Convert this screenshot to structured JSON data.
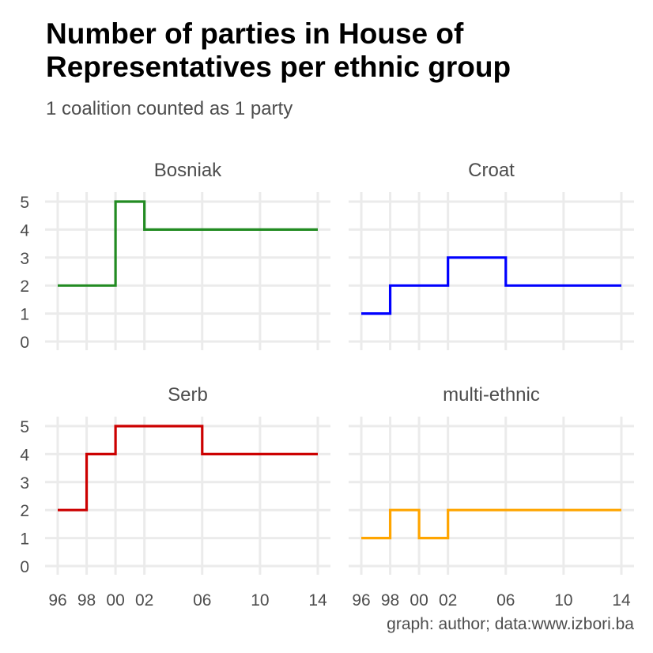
{
  "title": "Number of parties in House of Representatives per ethnic group",
  "subtitle": "1 coalition counted as 1 party",
  "caption": "graph: author; data:www.izbori.ba",
  "chart_data": {
    "type": "line",
    "step": "post",
    "facets": [
      {
        "name": "Bosniak",
        "color": "#228b22",
        "x": [
          1996,
          2000,
          2002,
          2014
        ],
        "values": [
          2,
          5,
          4,
          4
        ]
      },
      {
        "name": "Croat",
        "color": "#0000ff",
        "x": [
          1996,
          1998,
          2002,
          2006,
          2014
        ],
        "values": [
          1,
          2,
          3,
          2,
          2
        ]
      },
      {
        "name": "Serb",
        "color": "#cc0000",
        "x": [
          1996,
          1998,
          2000,
          2006,
          2014
        ],
        "values": [
          2,
          4,
          5,
          4,
          4
        ]
      },
      {
        "name": "multi-ethnic",
        "color": "#ffa500",
        "x": [
          1996,
          1998,
          2000,
          2002,
          2014
        ],
        "values": [
          1,
          2,
          1,
          2,
          2
        ]
      }
    ],
    "x_ticks": [
      1996,
      1998,
      2000,
      2002,
      2006,
      2010,
      2014
    ],
    "x_tick_labels": [
      "96",
      "98",
      "00",
      "02",
      "06",
      "10",
      "14"
    ],
    "y_ticks": [
      0,
      1,
      2,
      3,
      4,
      5
    ],
    "xlim": [
      1996,
      2014
    ],
    "ylim": [
      0,
      5
    ],
    "grid": true,
    "legend": "none"
  }
}
